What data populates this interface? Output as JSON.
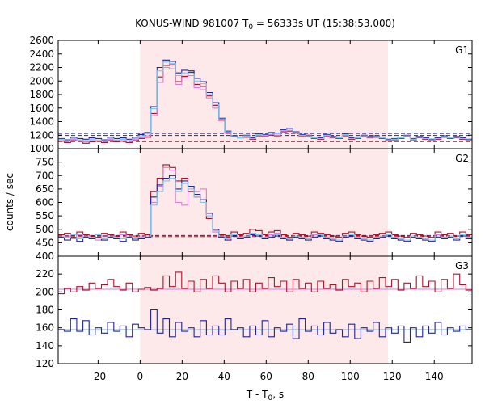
{
  "chart_data": {
    "type": "line",
    "title_prefix": "KONUS-WIND 981007 T",
    "title_sub": "0",
    "title_suffix": " = 56333s UT (15:38:53.000)",
    "xlabel_prefix": "T - T",
    "xlabel_sub": "0",
    "xlabel_suffix": ", s",
    "ylabel": "counts / sec",
    "xlim": [
      -39,
      158
    ],
    "x_ticks": [
      -20,
      0,
      20,
      40,
      60,
      80,
      100,
      120,
      140
    ],
    "x_tick_labels": [
      "-20",
      "0",
      "20",
      "40",
      "60",
      "80",
      "100",
      "120",
      "140"
    ],
    "highlight_interval": [
      0,
      118
    ],
    "colors": {
      "highlight": "#fde9ea",
      "dark_red": "#b0102a",
      "dark_blue": "#22229a",
      "light_blue": "#7ec8ee",
      "pink": "#e07ad8"
    },
    "panels": [
      {
        "name": "G1",
        "ylim": [
          1000,
          2600
        ],
        "y_ticks": [
          1000,
          1200,
          1400,
          1600,
          1800,
          2000,
          2200,
          2400,
          2600
        ],
        "y_tick_labels": [
          "1000",
          "1200",
          "1400",
          "1600",
          "1800",
          "2000",
          "2200",
          "2400",
          "2600"
        ],
        "hlines": [
          {
            "value": 1225,
            "color": "dark_blue",
            "dash": true
          },
          {
            "value": 1195,
            "color": "dark_blue",
            "dash": true
          },
          {
            "value": 1105,
            "color": "dark_red",
            "dash": true
          }
        ],
        "series": [
          {
            "name": "G1 dark red",
            "color": "dark_red",
            "x0": -39,
            "step": 2.94,
            "values": [
              1110,
              1090,
              1120,
              1130,
              1080,
              1100,
              1110,
              1090,
              1120,
              1100,
              1110,
              1090,
              1120,
              1150,
              1170,
              1520,
              2060,
              2230,
              2240,
              1990,
              2070,
              2130,
              1950,
              1920,
              1780,
              1640,
              1430,
              1240,
              1180,
              1160,
              1170,
              1140,
              1190,
              1180,
              1200,
              1190,
              1250,
              1260,
              1230,
              1190,
              1180,
              1150,
              1140,
              1180,
              1160,
              1150,
              1190,
              1140,
              1150,
              1180,
              1160,
              1170,
              1150,
              1120,
              1130,
              1150,
              1180,
              1130,
              1160,
              1140,
              1120,
              1140,
              1170,
              1150,
              1160,
              1140,
              1120
            ]
          },
          {
            "name": "G1 pink",
            "color": "pink",
            "x0": -39,
            "step": 2.94,
            "values": [
              1130,
              1110,
              1140,
              1120,
              1100,
              1120,
              1130,
              1110,
              1140,
              1120,
              1130,
              1110,
              1140,
              1160,
              1190,
              1490,
              1980,
              2200,
              2180,
              1950,
              2050,
              2080,
              1900,
              1870,
              1750,
              1600,
              1410,
              1230,
              1190,
              1170,
              1180,
              1150,
              1200,
              1190,
              1210,
              1200,
              1260,
              1270,
              1240,
              1200,
              1190,
              1160,
              1150,
              1190,
              1170,
              1160,
              1200,
              1150,
              1160,
              1190,
              1170,
              1180,
              1160,
              1130,
              1140,
              1160,
              1190,
              1140,
              1170,
              1150,
              1130,
              1150,
              1180,
              1160,
              1170,
              1150,
              1130
            ]
          },
          {
            "name": "G1 dark blue",
            "color": "dark_blue",
            "x0": -39,
            "step": 2.94,
            "values": [
              1150,
              1130,
              1170,
              1150,
              1140,
              1160,
              1150,
              1130,
              1170,
              1150,
              1160,
              1140,
              1170,
              1210,
              1240,
              1620,
              2200,
              2310,
              2290,
              2120,
              2160,
              2150,
              2040,
              1990,
              1830,
              1680,
              1450,
              1260,
              1190,
              1170,
              1200,
              1160,
              1220,
              1210,
              1240,
              1230,
              1280,
              1300,
              1250,
              1210,
              1200,
              1170,
              1160,
              1210,
              1180,
              1170,
              1220,
              1160,
              1170,
              1200,
              1180,
              1190,
              1170,
              1140,
              1150,
              1170,
              1200,
              1150,
              1180,
              1160,
              1140,
              1160,
              1190,
              1170,
              1180,
              1160,
              1140
            ]
          },
          {
            "name": "G1 light blue",
            "color": "light_blue",
            "x0": -39,
            "step": 2.94,
            "values": [
              1140,
              1120,
              1150,
              1130,
              1120,
              1140,
              1130,
              1120,
              1150,
              1130,
              1140,
              1120,
              1150,
              1190,
              1220,
              1590,
              2150,
              2280,
              2260,
              2080,
              2120,
              2110,
              2000,
              1960,
              1800,
              1650,
              1440,
              1250,
              1180,
              1160,
              1190,
              1150,
              1210,
              1200,
              1230,
              1220,
              1270,
              1290,
              1240,
              1200,
              1190,
              1160,
              1150,
              1200,
              1170,
              1160,
              1210,
              1150,
              1160,
              1190,
              1170,
              1180,
              1160,
              1130,
              1140,
              1160,
              1190,
              1140,
              1170,
              1150,
              1130,
              1150,
              1180,
              1160,
              1170,
              1150,
              1130
            ]
          }
        ]
      },
      {
        "name": "G2",
        "ylim": [
          400,
          800
        ],
        "y_ticks": [
          400,
          450,
          500,
          550,
          600,
          650,
          700,
          750
        ],
        "y_tick_labels": [
          "400",
          "450",
          "500",
          "550",
          "600",
          "650",
          "700",
          "750"
        ],
        "hlines": [
          {
            "value": 477,
            "color": "dark_blue",
            "dash": true
          },
          {
            "value": 473,
            "color": "dark_red",
            "dash": true
          }
        ],
        "series": [
          {
            "name": "G2 dark red",
            "color": "dark_red",
            "x0": -39,
            "step": 2.94,
            "values": [
              480,
              485,
              470,
              490,
              480,
              475,
              470,
              485,
              480,
              475,
              490,
              480,
              475,
              485,
              480,
              640,
              690,
              740,
              730,
              680,
              690,
              640,
              620,
              600,
              540,
              500,
              480,
              470,
              490,
              480,
              485,
              500,
              495,
              480,
              490,
              495,
              480,
              470,
              485,
              480,
              475,
              490,
              485,
              480,
              475,
              470,
              485,
              490,
              480,
              475,
              470,
              480,
              485,
              490,
              480,
              475,
              470,
              485,
              480,
              475,
              470,
              490,
              480,
              485,
              475,
              490,
              480
            ]
          },
          {
            "name": "G2 pink",
            "color": "pink",
            "x0": -39,
            "step": 2.94,
            "values": [
              470,
              475,
              465,
              480,
              470,
              465,
              460,
              475,
              470,
              465,
              480,
              470,
              465,
              475,
              470,
              600,
              660,
              730,
              720,
              600,
              590,
              650,
              640,
              650,
              560,
              490,
              470,
              465,
              475,
              470,
              475,
              485,
              480,
              470,
              480,
              485,
              470,
              460,
              475,
              470,
              465,
              480,
              475,
              470,
              465,
              460,
              475,
              480,
              470,
              465,
              460,
              470,
              475,
              480,
              470,
              465,
              460,
              475,
              470,
              465,
              460,
              480,
              470,
              475,
              465,
              480,
              470
            ]
          },
          {
            "name": "G2 dark blue",
            "color": "dark_blue",
            "x0": -39,
            "step": 2.94,
            "values": [
              470,
              460,
              480,
              455,
              470,
              465,
              480,
              460,
              470,
              465,
              455,
              470,
              460,
              465,
              470,
              620,
              665,
              690,
              700,
              650,
              680,
              660,
              630,
              610,
              560,
              500,
              470,
              460,
              475,
              465,
              470,
              480,
              475,
              465,
              470,
              475,
              465,
              460,
              470,
              465,
              460,
              470,
              475,
              465,
              460,
              455,
              470,
              475,
              465,
              460,
              455,
              465,
              470,
              475,
              465,
              460,
              455,
              470,
              465,
              460,
              455,
              470,
              465,
              470,
              460,
              475,
              465
            ]
          },
          {
            "name": "G2 light blue",
            "color": "light_blue",
            "x0": -39,
            "step": 2.94,
            "values": [
              475,
              470,
              480,
              465,
              475,
              470,
              480,
              465,
              475,
              470,
              465,
              475,
              470,
              470,
              475,
              590,
              640,
              680,
              690,
              640,
              670,
              650,
              620,
              600,
              550,
              495,
              475,
              465,
              480,
              470,
              475,
              485,
              480,
              470,
              475,
              480,
              470,
              465,
              475,
              470,
              465,
              475,
              480,
              470,
              465,
              460,
              475,
              480,
              470,
              465,
              460,
              470,
              475,
              480,
              470,
              465,
              460,
              475,
              470,
              465,
              460,
              475,
              470,
              475,
              465,
              480,
              470
            ]
          }
        ]
      },
      {
        "name": "G3",
        "ylim": [
          120,
          240
        ],
        "y_ticks": [
          120,
          140,
          160,
          180,
          200,
          220
        ],
        "y_tick_labels": [
          "120",
          "140",
          "160",
          "180",
          "200",
          "220"
        ],
        "hlines": [
          {
            "value": 203,
            "color": "pink",
            "dash": false
          },
          {
            "value": 158,
            "color": "light_blue",
            "dash": false
          }
        ],
        "series": [
          {
            "name": "G3 dark red",
            "color": "dark_red",
            "x0": -39,
            "step": 2.94,
            "values": [
              198,
              204,
              200,
              206,
              202,
              210,
              204,
              208,
              214,
              206,
              202,
              210,
              200,
              203,
              205,
              202,
              204,
              218,
              206,
              222,
              204,
              212,
              200,
              214,
              204,
              218,
              210,
              200,
              212,
              204,
              214,
              200,
              210,
              204,
              216,
              206,
              212,
              200,
              214,
              204,
              210,
              200,
              212,
              204,
              208,
              202,
              214,
              206,
              210,
              200,
              212,
              204,
              216,
              206,
              214,
              202,
              210,
              204,
              218,
              206,
              212,
              200,
              214,
              204,
              220,
              208,
              202
            ]
          },
          {
            "name": "G3 dark blue",
            "color": "dark_blue",
            "x0": -39,
            "step": 2.94,
            "values": [
              158,
              156,
              170,
              156,
              168,
              152,
              160,
              154,
              166,
              156,
              162,
              150,
              164,
              160,
              158,
              180,
              154,
              170,
              150,
              166,
              156,
              160,
              150,
              168,
              152,
              162,
              152,
              170,
              158,
              160,
              150,
              162,
              152,
              168,
              150,
              160,
              156,
              164,
              148,
              170,
              156,
              162,
              152,
              166,
              154,
              158,
              150,
              164,
              148,
              160,
              156,
              166,
              150,
              160,
              154,
              162,
              144,
              160,
              150,
              162,
              154,
              166,
              152,
              160,
              156,
              162,
              158
            ]
          }
        ]
      }
    ]
  }
}
